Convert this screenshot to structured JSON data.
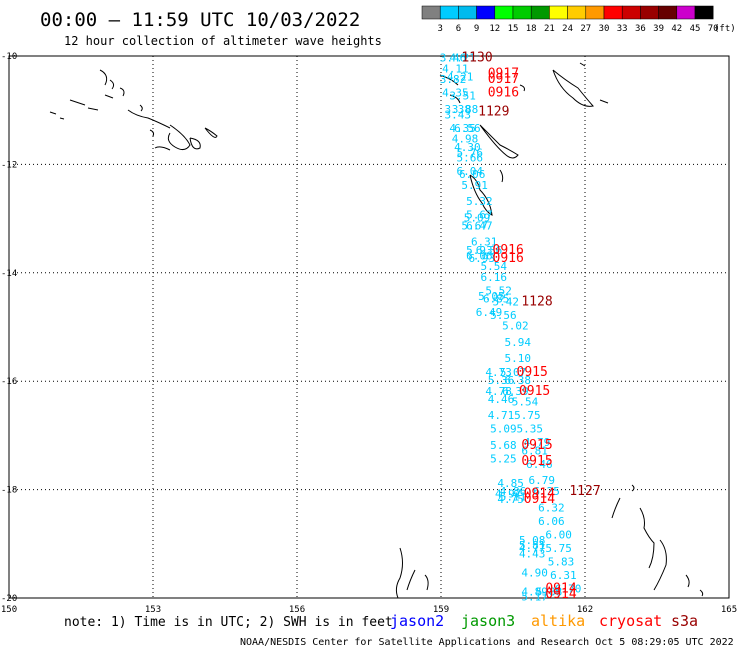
{
  "header": {
    "title": "00:00 – 11:59 UTC 10/03/2022",
    "subtitle": "12 hour collection of altimeter wave heights"
  },
  "colorbar": {
    "labels": [
      "3",
      "6",
      "9",
      "12",
      "15",
      "18",
      "21",
      "24",
      "27",
      "30",
      "33",
      "36",
      "39",
      "42",
      "45",
      "70"
    ],
    "unit": "(ft)",
    "colors": [
      "#808080",
      "#00ccff",
      "#00bbee",
      "#0000ff",
      "#00ff00",
      "#00cc00",
      "#009900",
      "#ffff00",
      "#ffcc00",
      "#ff9900",
      "#ff0000",
      "#cc0000",
      "#990000",
      "#660000",
      "#cc00cc",
      "#000000"
    ]
  },
  "footer": {
    "note": "note:  1) Time is in UTC; 2) SWH is in feet",
    "credit": "NOAA/NESDIS Center for Satellite Applications and Research   Oct  5 08:29:05 UTC 2022",
    "legend": [
      {
        "label": "jason2",
        "color": "#0000ff"
      },
      {
        "label": "jason3",
        "color": "#009900"
      },
      {
        "label": "altika",
        "color": "#ff9900"
      },
      {
        "label": "cryosat",
        "color": "#ff0000"
      },
      {
        "label": "s3a",
        "color": "#990000"
      }
    ]
  },
  "chart_data": {
    "type": "scatter",
    "xlim": [
      150,
      165
    ],
    "ylim": [
      -20,
      -10
    ],
    "x_ticks": [
      "150",
      "153",
      "156",
      "159",
      "162",
      "165"
    ],
    "y_ticks": [
      "-10",
      "-12",
      "-14",
      "-16",
      "-18",
      "-20"
    ],
    "grid": true,
    "swh_points": [
      {
        "lon": 159.25,
        "lat": -10.1,
        "label": "3.46"
      },
      {
        "lon": 159.45,
        "lat": -10.1,
        "label": "4.21"
      },
      {
        "lon": 159.3,
        "lat": -10.3,
        "label": "4.11"
      },
      {
        "lon": 159.4,
        "lat": -10.45,
        "label": "4.21"
      },
      {
        "lon": 159.25,
        "lat": -10.5,
        "label": "3.82"
      },
      {
        "lon": 159.3,
        "lat": -10.75,
        "label": "4.35"
      },
      {
        "lon": 159.45,
        "lat": -10.8,
        "label": "3.51"
      },
      {
        "lon": 159.35,
        "lat": -11.05,
        "label": "3.38"
      },
      {
        "lon": 159.5,
        "lat": -11.05,
        "label": "3.88"
      },
      {
        "lon": 159.35,
        "lat": -11.15,
        "label": "3.43"
      },
      {
        "lon": 159.45,
        "lat": -11.4,
        "label": "4.35"
      },
      {
        "lon": 159.55,
        "lat": -11.4,
        "label": "6.56"
      },
      {
        "lon": 159.5,
        "lat": -11.6,
        "label": "4.98"
      },
      {
        "lon": 159.55,
        "lat": -11.75,
        "label": "4.30"
      },
      {
        "lon": 159.6,
        "lat": -11.85,
        "label": "5.76"
      },
      {
        "lon": 159.6,
        "lat": -11.95,
        "label": "5.66"
      },
      {
        "lon": 159.6,
        "lat": -12.2,
        "label": "6.04"
      },
      {
        "lon": 159.65,
        "lat": -12.25,
        "label": "6.06"
      },
      {
        "lon": 159.7,
        "lat": -12.45,
        "label": "5.91"
      },
      {
        "lon": 159.8,
        "lat": -12.75,
        "label": "5.32"
      },
      {
        "lon": 159.8,
        "lat": -13.0,
        "label": "5.67"
      },
      {
        "lon": 159.75,
        "lat": -13.05,
        "label": "5.09"
      },
      {
        "lon": 159.8,
        "lat": -13.2,
        "label": "6.47"
      },
      {
        "lon": 159.7,
        "lat": -13.2,
        "label": "5.67"
      },
      {
        "lon": 159.9,
        "lat": -13.5,
        "label": "6.31"
      },
      {
        "lon": 159.8,
        "lat": -13.65,
        "label": "5.93"
      },
      {
        "lon": 160.0,
        "lat": -13.65,
        "label": "6.36"
      },
      {
        "lon": 159.8,
        "lat": -13.75,
        "label": "6.06"
      },
      {
        "lon": 159.85,
        "lat": -13.8,
        "label": "6.93"
      },
      {
        "lon": 160.1,
        "lat": -13.95,
        "label": "5.54"
      },
      {
        "lon": 160.1,
        "lat": -14.15,
        "label": "6.16"
      },
      {
        "lon": 160.2,
        "lat": -14.4,
        "label": "5.52"
      },
      {
        "lon": 160.05,
        "lat": -14.5,
        "label": "5.05"
      },
      {
        "lon": 160.15,
        "lat": -14.55,
        "label": "6.85"
      },
      {
        "lon": 160.35,
        "lat": -14.6,
        "label": "5.42"
      },
      {
        "lon": 160.0,
        "lat": -14.8,
        "label": "6.49"
      },
      {
        "lon": 160.3,
        "lat": -14.85,
        "label": "5.56"
      },
      {
        "lon": 160.55,
        "lat": -15.05,
        "label": "5.02"
      },
      {
        "lon": 160.6,
        "lat": -15.35,
        "label": "5.94"
      },
      {
        "lon": 160.6,
        "lat": -15.65,
        "label": "5.10"
      },
      {
        "lon": 160.2,
        "lat": -15.9,
        "label": "4.73"
      },
      {
        "lon": 160.5,
        "lat": -15.9,
        "label": "5.07"
      },
      {
        "lon": 160.25,
        "lat": -16.05,
        "label": "5.36"
      },
      {
        "lon": 160.6,
        "lat": -16.05,
        "label": "6.38"
      },
      {
        "lon": 160.2,
        "lat": -16.25,
        "label": "4.78"
      },
      {
        "lon": 160.55,
        "lat": -16.25,
        "label": "6.39"
      },
      {
        "lon": 160.25,
        "lat": -16.4,
        "label": "4.46"
      },
      {
        "lon": 160.75,
        "lat": -16.45,
        "label": "5.54"
      },
      {
        "lon": 160.25,
        "lat": -16.7,
        "label": "4.71"
      },
      {
        "lon": 160.8,
        "lat": -16.7,
        "label": "5.75"
      },
      {
        "lon": 160.3,
        "lat": -16.95,
        "label": "5.09"
      },
      {
        "lon": 160.85,
        "lat": -16.95,
        "label": "5.35"
      },
      {
        "lon": 161.0,
        "lat": -17.2,
        "label": "4.79"
      },
      {
        "lon": 160.3,
        "lat": -17.25,
        "label": "5.68"
      },
      {
        "lon": 160.95,
        "lat": -17.35,
        "label": "6.81"
      },
      {
        "lon": 160.3,
        "lat": -17.5,
        "label": "5.25"
      },
      {
        "lon": 161.05,
        "lat": -17.6,
        "label": "6.46"
      },
      {
        "lon": 161.1,
        "lat": -17.9,
        "label": "6.79"
      },
      {
        "lon": 160.45,
        "lat": -17.95,
        "label": "4.85"
      },
      {
        "lon": 160.5,
        "lat": -18.1,
        "label": "4.86"
      },
      {
        "lon": 160.4,
        "lat": -18.15,
        "label": "4.97"
      },
      {
        "lon": 160.5,
        "lat": -18.2,
        "label": "5.11"
      },
      {
        "lon": 161.2,
        "lat": -18.1,
        "label": "6.25"
      },
      {
        "lon": 160.45,
        "lat": -18.25,
        "label": "4.75"
      },
      {
        "lon": 161.3,
        "lat": -18.4,
        "label": "6.32"
      },
      {
        "lon": 161.3,
        "lat": -18.65,
        "label": "6.06"
      },
      {
        "lon": 161.45,
        "lat": -18.9,
        "label": "6.00"
      },
      {
        "lon": 160.9,
        "lat": -19.0,
        "label": "5.08"
      },
      {
        "lon": 160.9,
        "lat": -19.1,
        "label": "5.81"
      },
      {
        "lon": 160.9,
        "lat": -19.15,
        "label": "4.77"
      },
      {
        "lon": 161.45,
        "lat": -19.15,
        "label": "5.75"
      },
      {
        "lon": 160.9,
        "lat": -19.25,
        "label": "4.43"
      },
      {
        "lon": 161.5,
        "lat": -19.4,
        "label": "5.83"
      },
      {
        "lon": 160.95,
        "lat": -19.6,
        "label": "4.90"
      },
      {
        "lon": 161.55,
        "lat": -19.65,
        "label": "6.31"
      },
      {
        "lon": 161.65,
        "lat": -19.9,
        "label": "6.70"
      },
      {
        "lon": 160.95,
        "lat": -19.95,
        "label": "4.89"
      },
      {
        "lon": 161.25,
        "lat": -19.95,
        "label": "5.88"
      },
      {
        "lon": 160.95,
        "lat": -20.05,
        "label": "5.17"
      }
    ],
    "time_labels": [
      {
        "lon": 159.75,
        "lat": -10.1,
        "label": "1130",
        "color": "#990000"
      },
      {
        "lon": 160.3,
        "lat": -10.4,
        "label": "0917",
        "color": "#ff0000"
      },
      {
        "lon": 160.3,
        "lat": -10.5,
        "label": "0917",
        "color": "#ff0000"
      },
      {
        "lon": 160.3,
        "lat": -10.75,
        "label": "0916",
        "color": "#ff0000"
      },
      {
        "lon": 160.1,
        "lat": -11.1,
        "label": "1129",
        "color": "#990000"
      },
      {
        "lon": 160.4,
        "lat": -13.65,
        "label": "0916",
        "color": "#ff0000"
      },
      {
        "lon": 160.4,
        "lat": -13.8,
        "label": "0916",
        "color": "#ff0000"
      },
      {
        "lon": 161.0,
        "lat": -14.6,
        "label": "1128",
        "color": "#990000"
      },
      {
        "lon": 160.9,
        "lat": -15.9,
        "label": "0915",
        "color": "#ff0000"
      },
      {
        "lon": 160.95,
        "lat": -16.25,
        "label": "0915",
        "color": "#ff0000"
      },
      {
        "lon": 161.0,
        "lat": -17.25,
        "label": "0915",
        "color": "#ff0000"
      },
      {
        "lon": 161.0,
        "lat": -17.55,
        "label": "0915",
        "color": "#ff0000"
      },
      {
        "lon": 162.0,
        "lat": -18.1,
        "label": "1127",
        "color": "#990000"
      },
      {
        "lon": 161.05,
        "lat": -18.15,
        "label": "0914",
        "color": "#ff0000"
      },
      {
        "lon": 161.05,
        "lat": -18.25,
        "label": "0914",
        "color": "#ff0000"
      },
      {
        "lon": 161.5,
        "lat": -19.9,
        "label": "0914",
        "color": "#ff0000"
      },
      {
        "lon": 161.5,
        "lat": -20.0,
        "label": "0914",
        "color": "#ff0000"
      }
    ]
  }
}
